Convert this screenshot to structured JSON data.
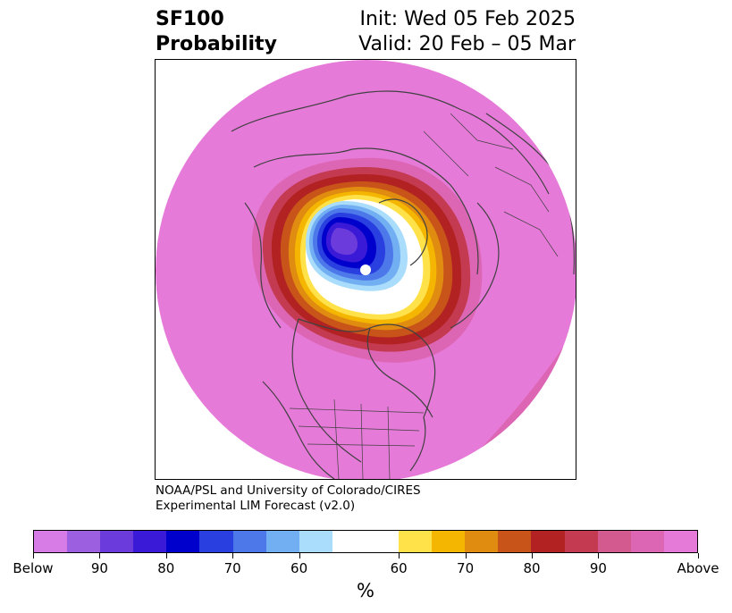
{
  "header": {
    "title_line1": "SF100",
    "title_line2": "Probability",
    "init_text": "Init: Wed 05 Feb 2025",
    "valid_text": "Valid: 20 Feb – 05 Mar"
  },
  "credits": {
    "line1": "NOAA/PSL and University of Colorado/CIRES",
    "line2": "Experimental LIM Forecast (v2.0)"
  },
  "colorbar": {
    "unit": "%",
    "colors": [
      "#d77be6",
      "#9c5fe0",
      "#6b3bdb",
      "#3a1ad6",
      "#0000cc",
      "#2a3fdf",
      "#4d78ea",
      "#72aef2",
      "#aadcfb",
      "#ffffff",
      "#ffe24a",
      "#f4b600",
      "#e08c10",
      "#c8541a",
      "#b22222",
      "#c43a50",
      "#d25a8e",
      "#dd66b4",
      "#e67ad9"
    ],
    "labels": [
      "Below",
      "90",
      "80",
      "70",
      "60",
      "60",
      "70",
      "80",
      "90",
      "Above"
    ]
  },
  "map": {
    "background_color": "#e67ad9",
    "projection": "north-polar-stereographic",
    "region": "Northern Hemisphere / North America",
    "anomaly": "stratospheric polar vortex low centered near Greenland/Arctic Canada"
  }
}
